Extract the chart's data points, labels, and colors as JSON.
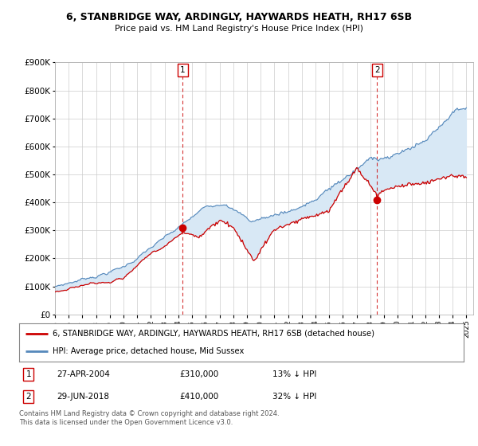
{
  "title": "6, STANBRIDGE WAY, ARDINGLY, HAYWARDS HEATH, RH17 6SB",
  "subtitle": "Price paid vs. HM Land Registry's House Price Index (HPI)",
  "ylim": [
    0,
    900000
  ],
  "xlim_start": 1995.0,
  "xlim_end": 2025.5,
  "yticks": [
    0,
    100000,
    200000,
    300000,
    400000,
    500000,
    600000,
    700000,
    800000,
    900000
  ],
  "ytick_labels": [
    "£0",
    "£100K",
    "£200K",
    "£300K",
    "£400K",
    "£500K",
    "£600K",
    "£700K",
    "£800K",
    "£900K"
  ],
  "sale1_x": 2004.32,
  "sale1_y": 310000,
  "sale2_x": 2018.49,
  "sale2_y": 410000,
  "red_color": "#cc0000",
  "blue_color": "#5588bb",
  "fill_color": "#d8e8f5",
  "dashed_color": "#cc0000",
  "bg_color": "#ffffff",
  "grid_color": "#cccccc",
  "legend_line1": "6, STANBRIDGE WAY, ARDINGLY, HAYWARDS HEATH, RH17 6SB (detached house)",
  "legend_line2": "HPI: Average price, detached house, Mid Sussex",
  "annotation1_date": "27-APR-2004",
  "annotation1_price": "£310,000",
  "annotation1_hpi": "13% ↓ HPI",
  "annotation2_date": "29-JUN-2018",
  "annotation2_price": "£410,000",
  "annotation2_hpi": "32% ↓ HPI",
  "footer": "Contains HM Land Registry data © Crown copyright and database right 2024.\nThis data is licensed under the Open Government Licence v3.0."
}
